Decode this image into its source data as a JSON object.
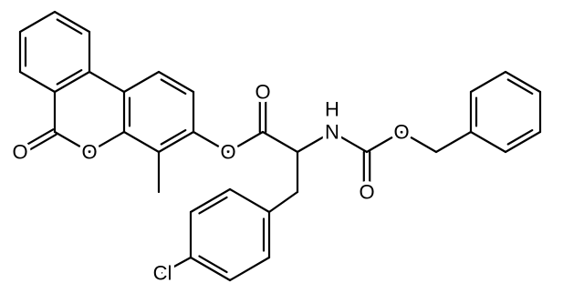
{
  "atoms": [
    {
      "label": "O"
    },
    {
      "label": "O"
    },
    {
      "label": "O"
    },
    {
      "label": "O"
    },
    {
      "label": "N"
    },
    {
      "label": "H"
    },
    {
      "label": "O"
    },
    {
      "label": "O"
    },
    {
      "label": "Cl"
    }
  ]
}
